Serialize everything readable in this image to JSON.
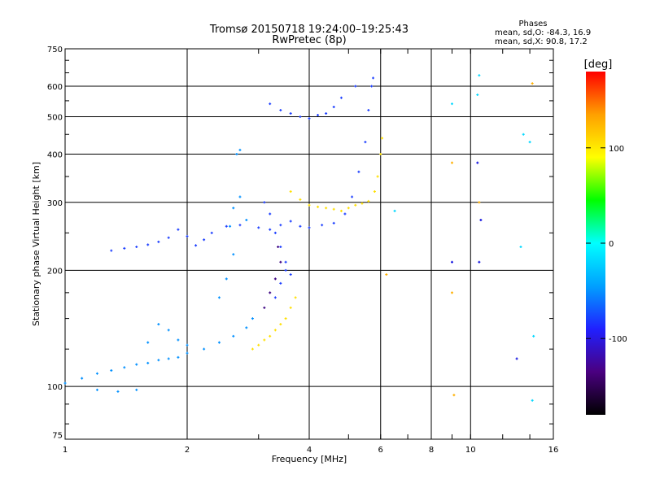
{
  "chart_data": {
    "type": "scatter",
    "title": "Tromsø 20150718 19:24:00–19:25:43",
    "subtitle": "RwPretec (8p)",
    "xlabel": "Frequency [MHz]",
    "ylabel": "Stationary phase Virtual Height [km]",
    "x_scale": "log",
    "y_scale": "log",
    "xlim": [
      1,
      16
    ],
    "ylim": [
      73,
      750
    ],
    "x_ticks": [
      1,
      2,
      4,
      6,
      8,
      10,
      16
    ],
    "y_ticks": [
      75,
      100,
      200,
      300,
      400,
      500,
      600,
      750
    ],
    "grid": true,
    "phases_box": {
      "title": "Phases",
      "line_o": "mean, sd,O: -84.3, 16.9",
      "line_x": "mean, sd,X:  90.8, 17.2"
    },
    "colorbar": {
      "label": "[deg]",
      "range": [
        -180,
        180
      ],
      "ticks": [
        100,
        0,
        -100
      ],
      "colors": [
        "#000000",
        "#4a0080",
        "#2020ff",
        "#00a0ff",
        "#00ffff",
        "#00ff00",
        "#ffff00",
        "#ffa000",
        "#ff0000"
      ]
    },
    "series": [
      {
        "phase": -100,
        "color": "#1e40ff",
        "points": [
          [
            1.3,
            225
          ],
          [
            1.4,
            228
          ],
          [
            1.5,
            230
          ],
          [
            1.6,
            233
          ],
          [
            1.7,
            237
          ],
          [
            1.8,
            243
          ],
          [
            1.9,
            255
          ],
          [
            2.0,
            245
          ],
          [
            2.1,
            232
          ],
          [
            2.2,
            240
          ],
          [
            2.3,
            250
          ],
          [
            2.5,
            260
          ],
          [
            2.7,
            262
          ],
          [
            3.0,
            258
          ],
          [
            3.2,
            255
          ],
          [
            3.4,
            262
          ],
          [
            3.6,
            268
          ],
          [
            3.8,
            260
          ],
          [
            4.0,
            258
          ],
          [
            4.3,
            262
          ],
          [
            4.6,
            265
          ],
          [
            4.9,
            280
          ],
          [
            5.1,
            310
          ],
          [
            5.3,
            360
          ],
          [
            5.5,
            430
          ],
          [
            5.6,
            520
          ],
          [
            5.7,
            600
          ],
          [
            5.75,
            630
          ],
          [
            3.2,
            540
          ],
          [
            3.4,
            520
          ],
          [
            3.6,
            510
          ],
          [
            3.8,
            500
          ],
          [
            4.0,
            495
          ],
          [
            4.2,
            505
          ],
          [
            4.4,
            510
          ],
          [
            4.6,
            530
          ],
          [
            4.8,
            560
          ],
          [
            5.2,
            600
          ],
          [
            3.1,
            300
          ],
          [
            3.2,
            280
          ],
          [
            3.3,
            250
          ],
          [
            3.4,
            230
          ],
          [
            3.5,
            210
          ],
          [
            3.6,
            195
          ],
          [
            3.3,
            170
          ],
          [
            3.4,
            185
          ],
          [
            3.5,
            200
          ]
        ]
      },
      {
        "phase": -60,
        "color": "#0090ff",
        "points": [
          [
            1.0,
            102
          ],
          [
            1.1,
            105
          ],
          [
            1.2,
            108
          ],
          [
            1.3,
            110
          ],
          [
            1.4,
            112
          ],
          [
            1.5,
            114
          ],
          [
            1.6,
            115
          ],
          [
            1.7,
            117
          ],
          [
            1.8,
            118
          ],
          [
            1.9,
            119
          ],
          [
            2.0,
            122
          ],
          [
            2.2,
            125
          ],
          [
            2.4,
            130
          ],
          [
            2.6,
            135
          ],
          [
            2.8,
            142
          ],
          [
            2.9,
            150
          ],
          [
            1.6,
            130
          ],
          [
            1.7,
            145
          ],
          [
            1.8,
            140
          ],
          [
            1.9,
            132
          ],
          [
            2.0,
            128
          ],
          [
            2.4,
            170
          ],
          [
            2.5,
            190
          ],
          [
            2.6,
            220
          ],
          [
            2.55,
            260
          ],
          [
            2.6,
            290
          ],
          [
            2.7,
            310
          ],
          [
            2.65,
            400
          ],
          [
            2.7,
            410
          ],
          [
            2.8,
            270
          ],
          [
            1.2,
            98
          ],
          [
            1.35,
            97
          ],
          [
            1.5,
            98
          ]
        ]
      },
      {
        "phase": 100,
        "color": "#ffe000",
        "points": [
          [
            2.9,
            125
          ],
          [
            3.0,
            128
          ],
          [
            3.1,
            132
          ],
          [
            3.2,
            135
          ],
          [
            3.3,
            140
          ],
          [
            3.4,
            145
          ],
          [
            3.5,
            150
          ],
          [
            3.6,
            160
          ],
          [
            3.7,
            170
          ],
          [
            3.6,
            320
          ],
          [
            3.8,
            305
          ],
          [
            4.0,
            295
          ],
          [
            4.2,
            292
          ],
          [
            4.4,
            290
          ],
          [
            4.6,
            288
          ],
          [
            4.8,
            285
          ],
          [
            5.0,
            290
          ],
          [
            5.2,
            295
          ],
          [
            5.4,
            298
          ],
          [
            5.6,
            302
          ],
          [
            5.8,
            320
          ],
          [
            5.9,
            350
          ],
          [
            6.0,
            400
          ],
          [
            6.05,
            440
          ]
        ]
      },
      {
        "phase": -160,
        "color": "#3a0080",
        "points": [
          [
            3.1,
            160
          ],
          [
            3.2,
            175
          ],
          [
            3.3,
            190
          ],
          [
            3.4,
            210
          ],
          [
            3.35,
            230
          ]
        ]
      },
      {
        "phase": 0,
        "color": "#00d8ff",
        "points": [
          [
            6.5,
            285
          ],
          [
            10.5,
            640
          ],
          [
            10.4,
            570
          ],
          [
            9.0,
            540
          ],
          [
            13.5,
            450
          ],
          [
            14.0,
            430
          ],
          [
            14.2,
            92
          ],
          [
            14.3,
            135
          ],
          [
            13.3,
            230
          ]
        ]
      },
      {
        "phase": 130,
        "color": "#ffb000",
        "points": [
          [
            6.2,
            195
          ],
          [
            9.0,
            380
          ],
          [
            9.1,
            95
          ],
          [
            14.2,
            610
          ],
          [
            9.0,
            175
          ],
          [
            10.5,
            300
          ]
        ]
      },
      {
        "phase": -110,
        "color": "#1010e0",
        "points": [
          [
            10.4,
            380
          ],
          [
            13.0,
            118
          ],
          [
            9.0,
            210
          ],
          [
            10.5,
            210
          ],
          [
            10.6,
            270
          ]
        ]
      }
    ]
  }
}
